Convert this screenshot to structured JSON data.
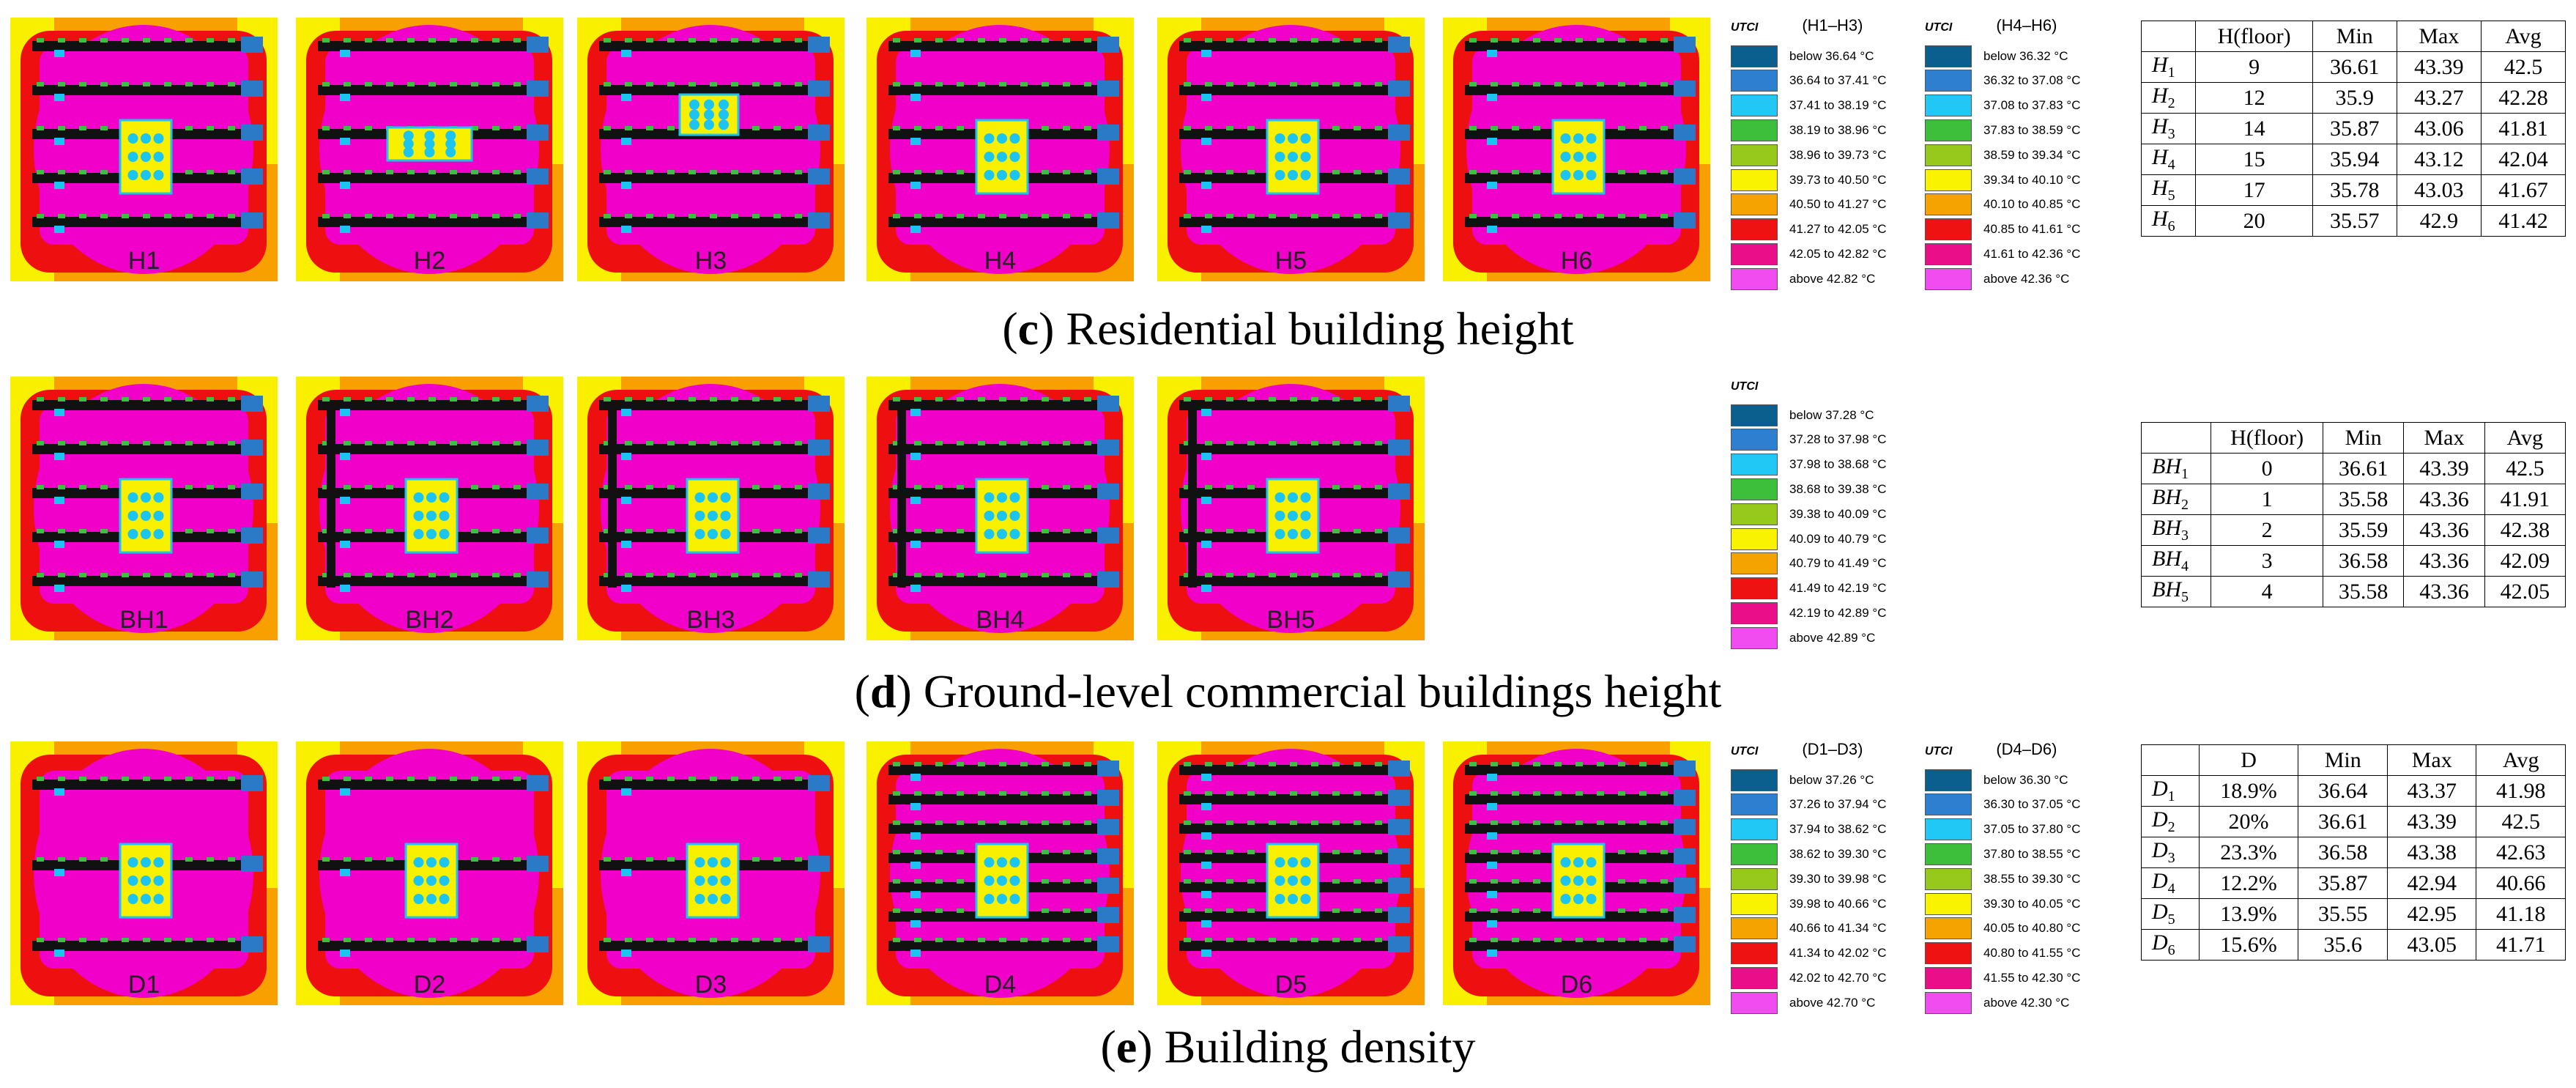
{
  "colors": {
    "bg_magenta": "#f000c8",
    "bg_red": "#ee1010",
    "bg_orange": "#f7a000",
    "bg_yellow": "#f9f000",
    "building_black": "#111111",
    "node_cyan": "#1cc4f0",
    "node_blue": "#2b7ac8",
    "node_green": "#3cc040"
  },
  "legend_colors": [
    "#0b5f8e",
    "#2f7fd0",
    "#22c8f5",
    "#3dbf3c",
    "#97c91c",
    "#f9f200",
    "#f5a300",
    "#ee1212",
    "#ea0f88",
    "#f04cf0"
  ],
  "panels": [
    {
      "id": "c",
      "caption_letter": "c",
      "caption_text": "Residential building height",
      "thumbs": [
        {
          "label": "H1",
          "variant": 0
        },
        {
          "label": "H2",
          "variant": 1
        },
        {
          "label": "H3",
          "variant": 2
        },
        {
          "label": "H4",
          "variant": 3
        },
        {
          "label": "H5",
          "variant": 4
        },
        {
          "label": "H6",
          "variant": 5
        }
      ],
      "legends": [
        {
          "title": "UTCI",
          "range": "(H1–H3)",
          "items": [
            "below 36.64 °C",
            "36.64 to 37.41 °C",
            "37.41 to 38.19 °C",
            "38.19 to 38.96 °C",
            "38.96 to 39.73 °C",
            "39.73 to 40.50 °C",
            "40.50 to 41.27 °C",
            "41.27 to 42.05 °C",
            "42.05 to 42.82 °C",
            "above 42.82 °C"
          ]
        },
        {
          "title": "UTCI",
          "range": "(H4–H6)",
          "items": [
            "below 36.32 °C",
            "36.32 to 37.08 °C",
            "37.08 to 37.83 °C",
            "37.83 to 38.59 °C",
            "38.59 to 39.34 °C",
            "39.34 to 40.10 °C",
            "40.10 to 40.85 °C",
            "40.85 to 41.61 °C",
            "41.61 to 42.36 °C",
            "above 42.36 °C"
          ]
        }
      ],
      "table": {
        "headers": [
          "",
          "H(floor)",
          "Min",
          "Max",
          "Avg"
        ],
        "rows": [
          {
            "sym": "H",
            "sub": "1",
            "v": "9",
            "min": "36.61",
            "max": "43.39",
            "avg": "42.5"
          },
          {
            "sym": "H",
            "sub": "2",
            "v": "12",
            "min": "35.9",
            "max": "43.27",
            "avg": "42.28"
          },
          {
            "sym": "H",
            "sub": "3",
            "v": "14",
            "min": "35.87",
            "max": "43.06",
            "avg": "41.81"
          },
          {
            "sym": "H",
            "sub": "4",
            "v": "15",
            "min": "35.94",
            "max": "43.12",
            "avg": "42.04"
          },
          {
            "sym": "H",
            "sub": "5",
            "v": "17",
            "min": "35.78",
            "max": "43.03",
            "avg": "41.67"
          },
          {
            "sym": "H",
            "sub": "6",
            "v": "20",
            "min": "35.57",
            "max": "42.9",
            "avg": "41.42"
          }
        ]
      }
    },
    {
      "id": "d",
      "caption_letter": "d",
      "caption_text": "Ground-level commercial buildings height",
      "thumbs": [
        {
          "label": "BH1",
          "variant": 6
        },
        {
          "label": "BH2",
          "variant": 7
        },
        {
          "label": "BH3",
          "variant": 8
        },
        {
          "label": "BH4",
          "variant": 9
        },
        {
          "label": "BH5",
          "variant": 10
        }
      ],
      "legends": [
        {
          "title": "UTCI",
          "range": "",
          "items": [
            "below 37.28 °C",
            "37.28 to 37.98 °C",
            "37.98 to 38.68 °C",
            "38.68 to 39.38 °C",
            "39.38 to 40.09 °C",
            "40.09 to 40.79 °C",
            "40.79 to 41.49 °C",
            "41.49 to 42.19 °C",
            "42.19 to 42.89 °C",
            "above 42.89 °C"
          ]
        }
      ],
      "table": {
        "headers": [
          "",
          "H(floor)",
          "Min",
          "Max",
          "Avg"
        ],
        "rows": [
          {
            "sym": "BH",
            "sub": "1",
            "v": "0",
            "min": "36.61",
            "max": "43.39",
            "avg": "42.5"
          },
          {
            "sym": "BH",
            "sub": "2",
            "v": "1",
            "min": "35.58",
            "max": "43.36",
            "avg": "41.91"
          },
          {
            "sym": "BH",
            "sub": "3",
            "v": "2",
            "min": "35.59",
            "max": "43.36",
            "avg": "42.38"
          },
          {
            "sym": "BH",
            "sub": "4",
            "v": "3",
            "min": "36.58",
            "max": "43.36",
            "avg": "42.09"
          },
          {
            "sym": "BH",
            "sub": "5",
            "v": "4",
            "min": "35.58",
            "max": "43.36",
            "avg": "42.05"
          }
        ]
      }
    },
    {
      "id": "e",
      "caption_letter": "e",
      "caption_text": "Building density",
      "thumbs": [
        {
          "label": "D1",
          "variant": 11
        },
        {
          "label": "D2",
          "variant": 12
        },
        {
          "label": "D3",
          "variant": 13
        },
        {
          "label": "D4",
          "variant": 14
        },
        {
          "label": "D5",
          "variant": 15
        },
        {
          "label": "D6",
          "variant": 16
        }
      ],
      "legends": [
        {
          "title": "UTCI",
          "range": "(D1–D3)",
          "items": [
            "below 37.26 °C",
            "37.26 to 37.94 °C",
            "37.94 to 38.62 °C",
            "38.62 to 39.30 °C",
            "39.30 to 39.98 °C",
            "39.98 to 40.66 °C",
            "40.66 to 41.34 °C",
            "41.34 to 42.02 °C",
            "42.02 to 42.70 °C",
            "above 42.70 °C"
          ]
        },
        {
          "title": "UTCI",
          "range": "(D4–D6)",
          "items": [
            "below 36.30 °C",
            "36.30 to 37.05 °C",
            "37.05 to 37.80 °C",
            "37.80 to 38.55 °C",
            "38.55 to 39.30 °C",
            "39.30 to 40.05 °C",
            "40.05 to 40.80 °C",
            "40.80 to 41.55 °C",
            "41.55 to 42.30 °C",
            "above 42.30 °C"
          ]
        }
      ],
      "table": {
        "headers": [
          "",
          "D",
          "Min",
          "Max",
          "Avg"
        ],
        "rows": [
          {
            "sym": "D",
            "sub": "1",
            "v": "18.9%",
            "min": "36.64",
            "max": "43.37",
            "avg": "41.98"
          },
          {
            "sym": "D",
            "sub": "2",
            "v": "20%",
            "min": "36.61",
            "max": "43.39",
            "avg": "42.5"
          },
          {
            "sym": "D",
            "sub": "3",
            "v": "23.3%",
            "min": "36.58",
            "max": "43.38",
            "avg": "42.63"
          },
          {
            "sym": "D",
            "sub": "4",
            "v": "12.2%",
            "min": "35.87",
            "max": "42.94",
            "avg": "40.66"
          },
          {
            "sym": "D",
            "sub": "5",
            "v": "13.9%",
            "min": "35.55",
            "max": "42.95",
            "avg": "41.18"
          },
          {
            "sym": "D",
            "sub": "6",
            "v": "15.6%",
            "min": "35.6",
            "max": "43.05",
            "avg": "41.71"
          }
        ]
      }
    }
  ]
}
